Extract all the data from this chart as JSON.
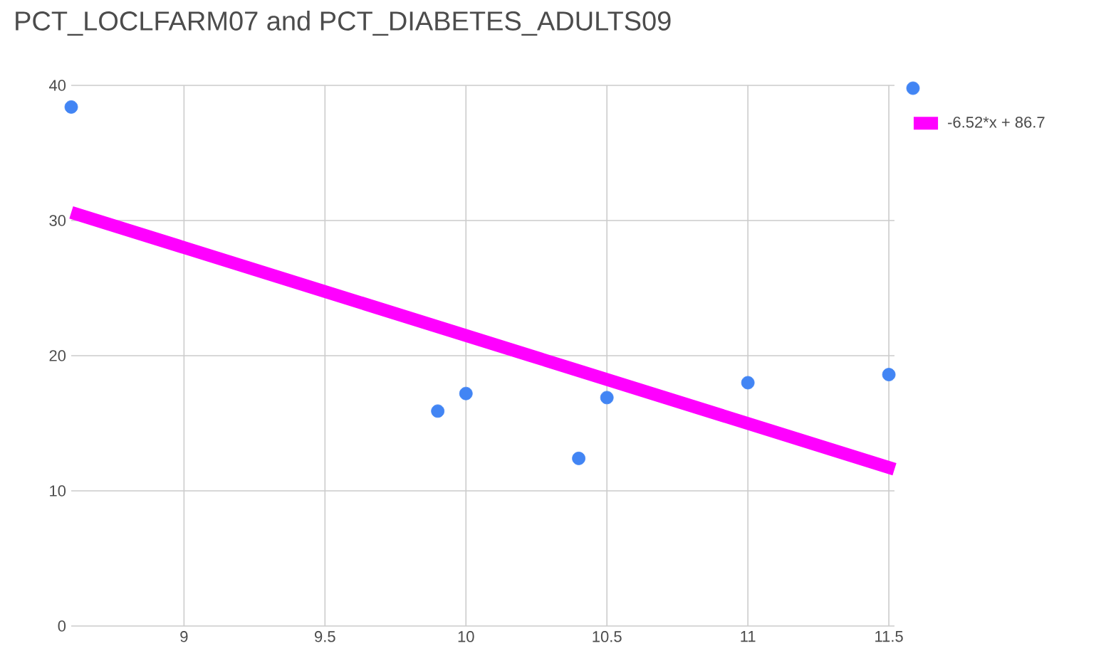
{
  "chart_data": {
    "type": "scatter",
    "title": "PCT_LOCLFARM07 and PCT_DIABETES_ADULTS09",
    "series": [
      {
        "color": "#4285f4",
        "marker": "circle",
        "x": [
          8.6,
          9.9,
          10.0,
          10.4,
          10.5,
          11.0,
          11.5
        ],
        "values": [
          38.4,
          15.9,
          17.2,
          12.4,
          16.9,
          18.0,
          18.6
        ]
      },
      {
        "type": "line",
        "name": "-6.52*x + 86.7",
        "color": "#ff00ff",
        "x": [
          8.6,
          11.52
        ],
        "values": [
          30.6,
          11.6
        ]
      }
    ],
    "xlim": [
      8.6,
      11.52
    ],
    "ylim": [
      0,
      40
    ],
    "xticks": [
      9,
      9.5,
      10,
      10.5,
      11,
      11.5
    ],
    "yticks": [
      0,
      10,
      20,
      30,
      40
    ],
    "grid": true,
    "legend": "right"
  }
}
